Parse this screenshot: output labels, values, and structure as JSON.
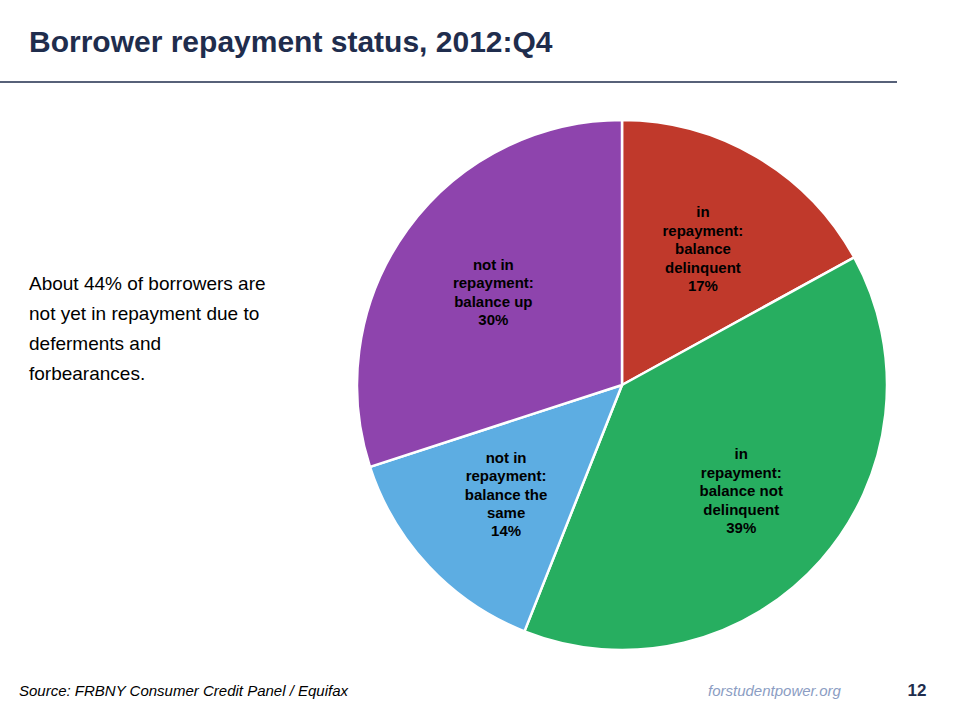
{
  "chart_data": {
    "type": "pie",
    "title": "Borrower repayment status, 2012:Q4",
    "annotation": "About 44% of borrowers are\nnot yet in repayment due to\ndeferments and\nforbearances.",
    "source": "Source: FRBNY Consumer Credit Panel / Equifax",
    "watermark": "forstudentpower.org",
    "page_number": "12",
    "categories": [
      "in\nrepayment:\nbalance\ndelinquent",
      "in\nrepayment:\nbalance not\ndelinquent",
      "not in\nrepayment:\nbalance the\nsame",
      "not in\nrepayment:\nbalance up"
    ],
    "values": [
      17,
      39,
      14,
      30
    ],
    "value_labels": [
      "17%",
      "39%",
      "14%",
      "30%"
    ],
    "data_labels": true,
    "colors": [
      "#C0392B",
      "#27AE60",
      "#5DADE2",
      "#8E44AD"
    ]
  }
}
